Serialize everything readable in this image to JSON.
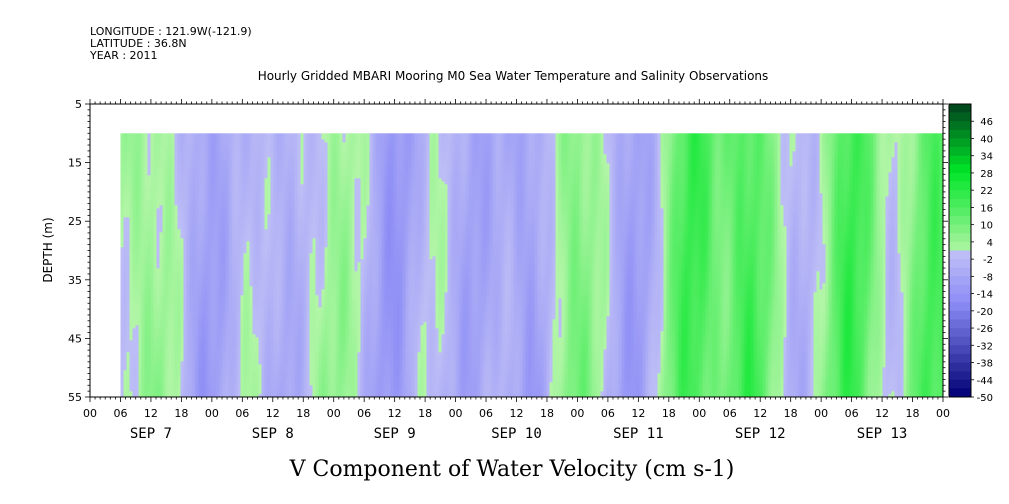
{
  "chart_data": {
    "type": "heatmap",
    "header": {
      "longitude": "LONGITUDE : 121.9W(-121.9)",
      "latitude": "LATITUDE : 36.8N",
      "year": "YEAR : 2011"
    },
    "title": "Hourly Gridded MBARI Mooring M0 Sea Water Temperature and Salinity Observations",
    "subtitle": "V Component of Water Velocity (cm s-1)",
    "ylabel": "DEPTH (m)",
    "y_axis": {
      "inverted": true,
      "range": [
        5,
        55
      ],
      "ticks": [
        "5",
        "15",
        "25",
        "35",
        "45",
        "55"
      ]
    },
    "x_axis": {
      "range_hours": [
        0,
        168
      ],
      "hour_labels": [
        "00",
        "06",
        "12",
        "18",
        "00",
        "06",
        "12",
        "18",
        "00",
        "06",
        "12",
        "18",
        "00",
        "06",
        "12",
        "18",
        "00",
        "06",
        "12",
        "18",
        "00",
        "06",
        "12",
        "18",
        "00",
        "06",
        "12",
        "18",
        "00"
      ],
      "day_labels": [
        "SEP  7",
        "SEP  8",
        "SEP  9",
        "SEP 10",
        "SEP 11",
        "SEP 12",
        "SEP 13"
      ]
    },
    "data_extent": {
      "start_hour": 6,
      "end_hour": 168,
      "top_depth": 10,
      "bottom_depth": 55
    },
    "colorbar": {
      "labels": [
        "46",
        "40",
        "34",
        "28",
        "22",
        "16",
        "10",
        "4",
        "-2",
        "-8",
        "-14",
        "-20",
        "-26",
        "-32",
        "-38",
        "-44",
        "-50"
      ],
      "min": -50,
      "max": 52,
      "step": 3
    },
    "features": [
      {
        "day": 0.45,
        "amp": 5
      },
      {
        "day": 0.95,
        "amp": -10
      },
      {
        "day": 1.55,
        "amp": -6
      },
      {
        "day": 2.0,
        "amp": 3
      },
      {
        "day": 2.5,
        "amp": -12
      },
      {
        "day": 3.15,
        "amp": -8
      },
      {
        "day": 3.6,
        "amp": -11
      },
      {
        "day": 3.95,
        "amp": 9
      },
      {
        "day": 4.45,
        "amp": -10
      },
      {
        "day": 4.95,
        "amp": 18
      },
      {
        "day": 5.4,
        "amp": 17
      },
      {
        "day": 5.8,
        "amp": -4
      },
      {
        "day": 6.25,
        "amp": 18
      },
      {
        "day": 6.65,
        "amp": -3
      },
      {
        "day": 6.9,
        "amp": 16
      }
    ]
  }
}
